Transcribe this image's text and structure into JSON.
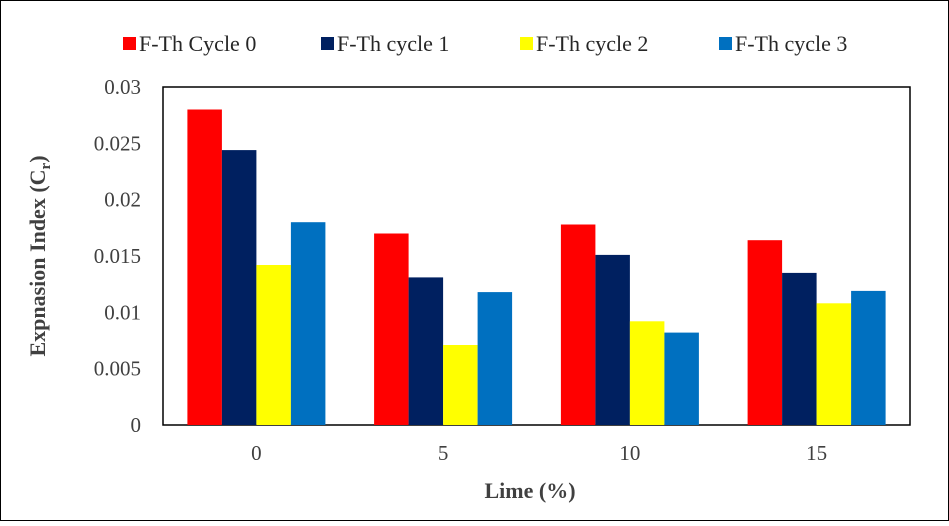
{
  "chart_data": {
    "type": "bar",
    "categories": [
      "0",
      "5",
      "10",
      "15"
    ],
    "series": [
      {
        "name": "F-Th Cycle 0",
        "color": "#ff0000",
        "values": [
          0.028,
          0.017,
          0.0178,
          0.0164
        ]
      },
      {
        "name": "F-Th cycle 1",
        "color": "#002060",
        "values": [
          0.0244,
          0.0131,
          0.0151,
          0.0135
        ]
      },
      {
        "name": "F-Th cycle 2",
        "color": "#ffff00",
        "values": [
          0.0142,
          0.0071,
          0.0092,
          0.0108
        ]
      },
      {
        "name": "F-Th cycle 3",
        "color": "#0070c0",
        "values": [
          0.018,
          0.0118,
          0.0082,
          0.0119
        ]
      }
    ],
    "xlabel": "Lime  (%)",
    "ylabel_main": "Expnasion Index (C",
    "ylabel_sub": "r",
    "ylabel_end": ")",
    "ylim": [
      0,
      0.03
    ],
    "yticks": [
      "0",
      "0.005",
      "0.01",
      "0.015",
      "0.02",
      "0.025",
      "0.03"
    ],
    "ytick_values": [
      0,
      0.005,
      0.01,
      0.015,
      0.02,
      0.025,
      0.03
    ],
    "grid": false,
    "legend_position": "top"
  }
}
